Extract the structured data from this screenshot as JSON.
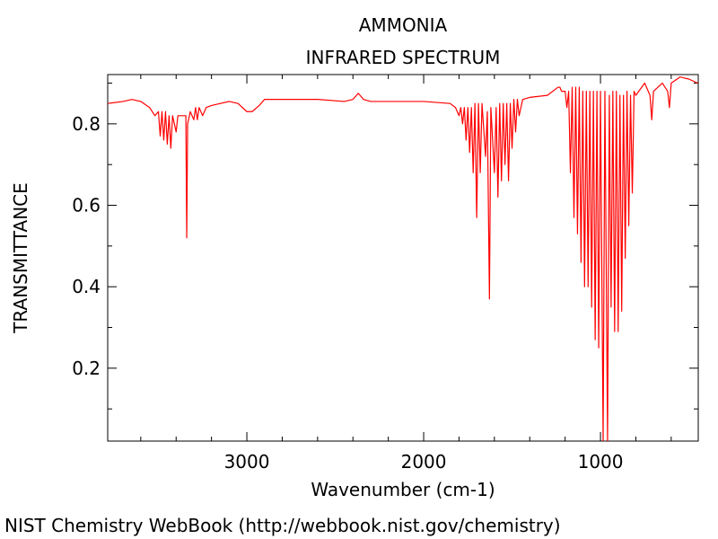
{
  "chart_data": {
    "type": "line",
    "title": "AMMONIA",
    "subtitle": "INFRARED SPECTRUM",
    "x_label": "Wavenumber (cm-1)",
    "y_label": "TRANSMITTANCE",
    "source": "NIST Chemistry WebBook (http://webbook.nist.gov/chemistry)",
    "color": "#ff0000",
    "xlim": [
      3787,
      447
    ],
    "ylim": [
      0.021,
      0.921
    ],
    "xticks": [
      3000,
      2000,
      1000
    ],
    "yticks": [
      0.2,
      0.4,
      0.6,
      0.8
    ],
    "xminorticks": [
      3600,
      3400,
      3200,
      2800,
      2600,
      2400,
      2200,
      1800,
      1600,
      1400,
      1200,
      800,
      600
    ],
    "yminorticks": [
      0.1,
      0.3,
      0.5,
      0.7,
      0.9
    ],
    "x": [
      3787,
      3700,
      3650,
      3600,
      3550,
      3520,
      3500,
      3490,
      3480,
      3470,
      3460,
      3450,
      3440,
      3430,
      3420,
      3400,
      3390,
      3370,
      3345,
      3340,
      3335,
      3320,
      3300,
      3290,
      3280,
      3270,
      3250,
      3230,
      3200,
      3100,
      3050,
      3000,
      2970,
      2930,
      2900,
      2800,
      2600,
      2450,
      2400,
      2370,
      2340,
      2300,
      2200,
      2000,
      1850,
      1820,
      1800,
      1790,
      1780,
      1770,
      1760,
      1750,
      1740,
      1730,
      1720,
      1710,
      1700,
      1690,
      1680,
      1670,
      1650,
      1640,
      1628,
      1620,
      1600,
      1590,
      1580,
      1570,
      1560,
      1550,
      1540,
      1530,
      1520,
      1510,
      1500,
      1490,
      1480,
      1470,
      1460,
      1440,
      1400,
      1300,
      1240,
      1230,
      1220,
      1200,
      1190,
      1180,
      1170,
      1160,
      1150,
      1140,
      1130,
      1120,
      1110,
      1100,
      1090,
      1080,
      1070,
      1060,
      1050,
      1040,
      1030,
      1020,
      1010,
      1000,
      985,
      975,
      960,
      950,
      940,
      930,
      920,
      910,
      900,
      890,
      880,
      870,
      860,
      850,
      840,
      830,
      820,
      810,
      800,
      750,
      720,
      710,
      700,
      650,
      620,
      610,
      600,
      550,
      500,
      450
    ],
    "values": [
      0.85,
      0.855,
      0.86,
      0.855,
      0.84,
      0.82,
      0.83,
      0.77,
      0.83,
      0.76,
      0.83,
      0.75,
      0.82,
      0.74,
      0.82,
      0.78,
      0.82,
      0.82,
      0.82,
      0.52,
      0.8,
      0.83,
      0.81,
      0.84,
      0.81,
      0.84,
      0.82,
      0.84,
      0.845,
      0.855,
      0.85,
      0.83,
      0.83,
      0.845,
      0.86,
      0.86,
      0.86,
      0.855,
      0.86,
      0.875,
      0.86,
      0.855,
      0.855,
      0.855,
      0.85,
      0.84,
      0.82,
      0.84,
      0.8,
      0.84,
      0.76,
      0.84,
      0.73,
      0.84,
      0.68,
      0.85,
      0.57,
      0.85,
      0.68,
      0.85,
      0.72,
      0.83,
      0.37,
      0.84,
      0.68,
      0.84,
      0.62,
      0.85,
      0.66,
      0.85,
      0.7,
      0.85,
      0.66,
      0.85,
      0.74,
      0.86,
      0.78,
      0.86,
      0.82,
      0.86,
      0.865,
      0.87,
      0.89,
      0.89,
      0.88,
      0.88,
      0.84,
      0.88,
      0.68,
      0.89,
      0.57,
      0.89,
      0.53,
      0.89,
      0.46,
      0.88,
      0.4,
      0.88,
      0.4,
      0.88,
      0.35,
      0.88,
      0.27,
      0.88,
      0.25,
      0.88,
      0.022,
      0.88,
      0.022,
      0.87,
      0.35,
      0.88,
      0.29,
      0.88,
      0.29,
      0.87,
      0.34,
      0.87,
      0.47,
      0.88,
      0.55,
      0.87,
      0.63,
      0.88,
      0.87,
      0.9,
      0.87,
      0.81,
      0.88,
      0.9,
      0.88,
      0.84,
      0.9,
      0.915,
      0.91,
      0.9
    ]
  }
}
